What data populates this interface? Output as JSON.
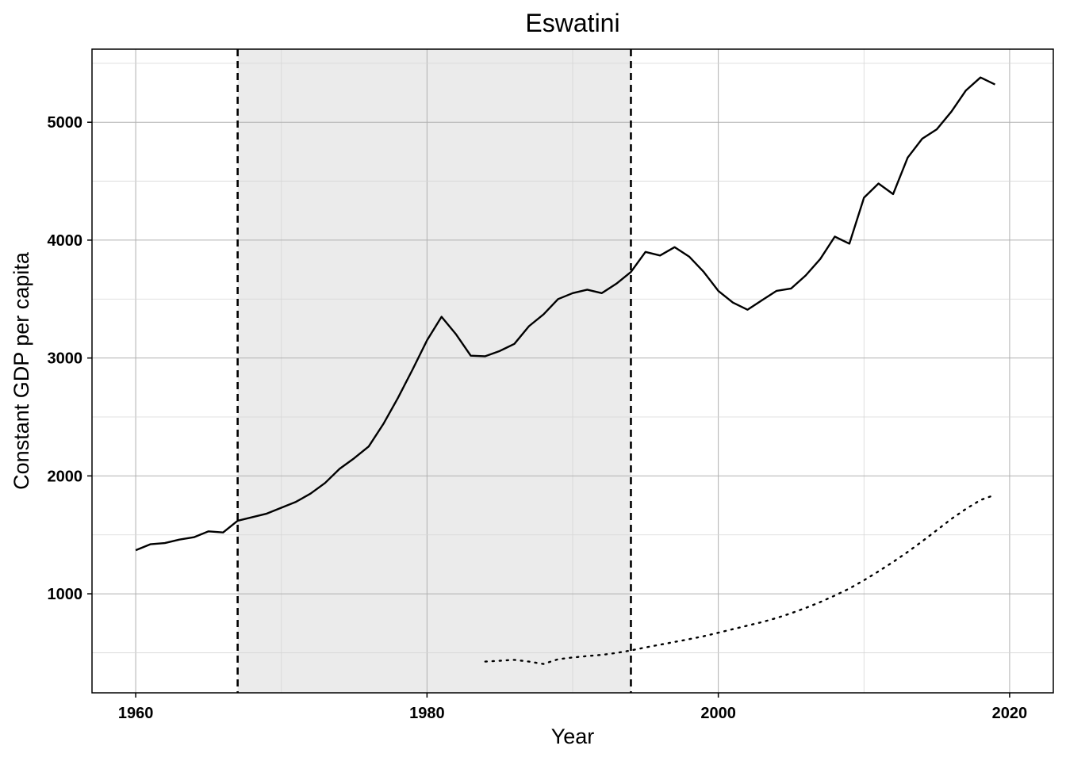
{
  "chart_data": {
    "type": "line",
    "title": "Eswatini",
    "xlabel": "Year",
    "ylabel": "Constant GDP per capita",
    "xlim": [
      1957,
      2023
    ],
    "ylim": [
      160,
      5620
    ],
    "grid": true,
    "x_ticks": [
      1960,
      1980,
      2000,
      2020
    ],
    "y_ticks": [
      1000,
      2000,
      3000,
      4000,
      5000
    ],
    "shaded_region": {
      "x_start": 1967,
      "x_end": 1994,
      "color": "#ebebeb"
    },
    "reference_lines": [
      {
        "x": 1967,
        "style": "dashed"
      },
      {
        "x": 1994,
        "style": "dashed"
      }
    ],
    "series": [
      {
        "style": "solid",
        "x": [
          1960,
          1961,
          1962,
          1963,
          1964,
          1965,
          1966,
          1967,
          1968,
          1969,
          1970,
          1971,
          1972,
          1973,
          1974,
          1975,
          1976,
          1977,
          1978,
          1979,
          1980,
          1981,
          1982,
          1983,
          1984,
          1985,
          1986,
          1987,
          1988,
          1989,
          1990,
          1991,
          1992,
          1993,
          1994,
          1995,
          1996,
          1997,
          1998,
          1999,
          2000,
          2001,
          2002,
          2003,
          2004,
          2005,
          2006,
          2007,
          2008,
          2009,
          2010,
          2011,
          2012,
          2013,
          2014,
          2015,
          2016,
          2017,
          2018,
          2019
        ],
        "values": [
          1370,
          1420,
          1430,
          1460,
          1480,
          1530,
          1520,
          1620,
          1650,
          1680,
          1730,
          1780,
          1850,
          1940,
          2060,
          2150,
          2250,
          2440,
          2660,
          2900,
          3150,
          3350,
          3200,
          3020,
          3015,
          3060,
          3120,
          3270,
          3370,
          3500,
          3550,
          3580,
          3550,
          3630,
          3730,
          3900,
          3870,
          3940,
          3860,
          3730,
          3570,
          3470,
          3410,
          3490,
          3570,
          3590,
          3700,
          3840,
          4030,
          3970,
          4360,
          4480,
          4390,
          4700,
          4860,
          4940,
          5090,
          5270,
          5380,
          5320
        ]
      },
      {
        "style": "dotted",
        "x": [
          1984,
          1985,
          1986,
          1987,
          1988,
          1989,
          1990,
          1991,
          1992,
          1993,
          1994,
          1995,
          1996,
          1997,
          1998,
          1999,
          2000,
          2001,
          2002,
          2003,
          2004,
          2005,
          2006,
          2007,
          2008,
          2009,
          2010,
          2011,
          2012,
          2013,
          2014,
          2015,
          2016,
          2017,
          2018,
          2019
        ],
        "values": [
          425,
          432,
          440,
          425,
          405,
          445,
          460,
          472,
          482,
          498,
          520,
          545,
          568,
          592,
          615,
          640,
          670,
          700,
          730,
          760,
          795,
          835,
          880,
          930,
          985,
          1045,
          1115,
          1190,
          1270,
          1355,
          1445,
          1540,
          1635,
          1720,
          1795,
          1840
        ]
      }
    ]
  }
}
